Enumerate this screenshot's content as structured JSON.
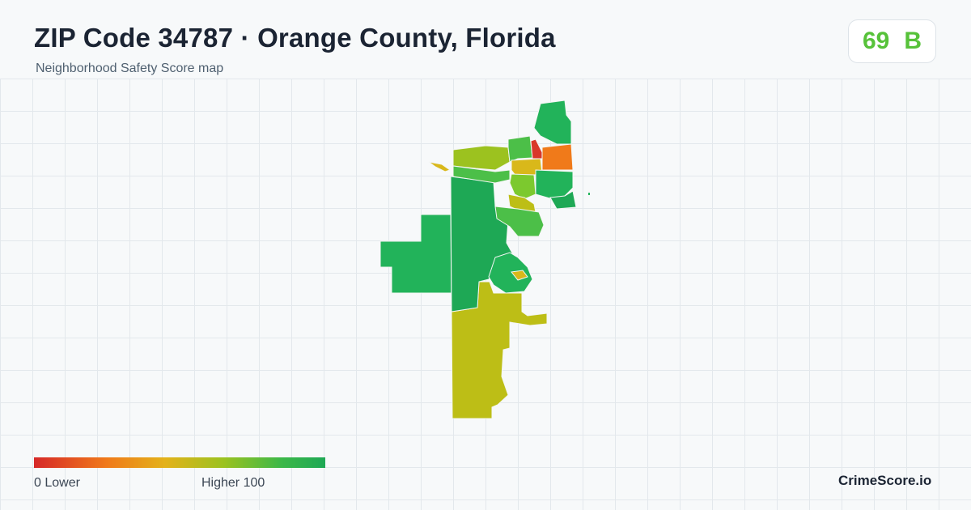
{
  "header": {
    "title": "ZIP Code 34787 · Orange County, Florida",
    "subtitle": "Neighborhood Safety Score map"
  },
  "score": {
    "value": "69",
    "grade": "B",
    "color": "#57c23a"
  },
  "legend": {
    "low_label": "0  Lower",
    "high_label": "Higher  100",
    "colors": [
      "#d62828",
      "#f07a1a",
      "#e3b21a",
      "#9cc21f",
      "#3cb848",
      "#1ea855"
    ]
  },
  "brand": "CrimeScore.io",
  "map": {
    "colors": {
      "very_high": "#1ea855",
      "high": "#22b35a",
      "high_mid": "#4cbf48",
      "mid": "#7cc92e",
      "olive": "#bdbe16",
      "yellow": "#d9b81a",
      "orange": "#f07a1a",
      "red": "#d9382a"
    }
  }
}
